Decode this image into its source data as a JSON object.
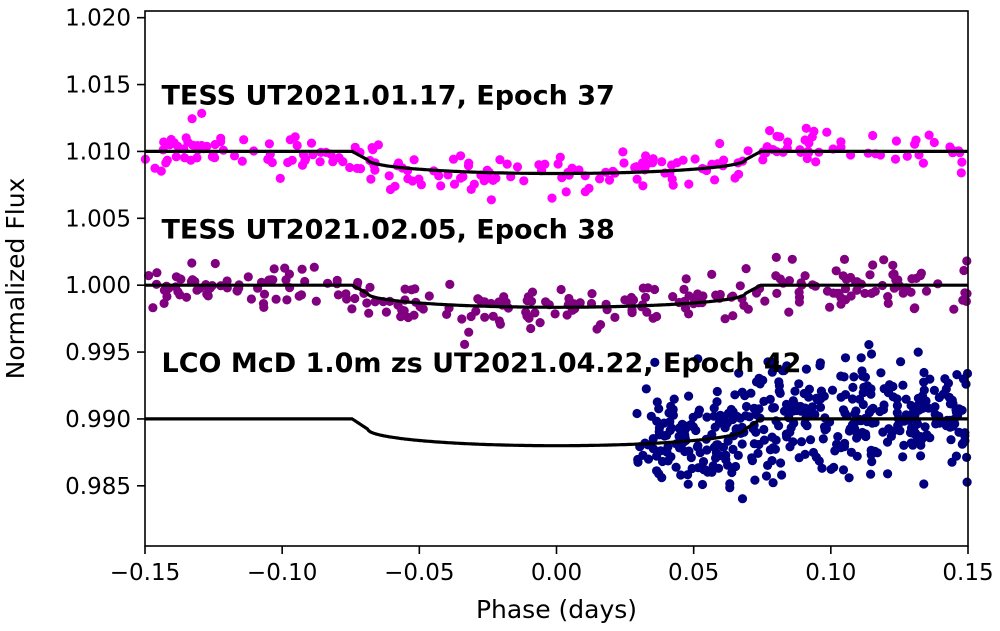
{
  "chart_data": {
    "type": "scatter",
    "xlabel": "Phase (days)",
    "ylabel": "Normalized Flux",
    "xlim": [
      -0.15,
      0.15
    ],
    "ylim": [
      0.9805,
      1.0205
    ],
    "xticks": [
      -0.15,
      -0.1,
      -0.05,
      0.0,
      0.05,
      0.1,
      0.15
    ],
    "xtick_labels": [
      "−0.15",
      "−0.10",
      "−0.05",
      "0.00",
      "0.05",
      "0.10",
      "0.15"
    ],
    "yticks": [
      0.985,
      0.99,
      0.995,
      1.0,
      1.005,
      1.01,
      1.015,
      1.02
    ],
    "ytick_labels": [
      "0.985",
      "0.990",
      "0.995",
      "1.000",
      "1.005",
      "1.010",
      "1.015",
      "1.020"
    ],
    "transit_model": {
      "ingress_start": -0.0745,
      "ingress_end": -0.0688,
      "egress_start": 0.0688,
      "egress_end": 0.0745
    },
    "series": [
      {
        "name": "TESS UT2021.01.17, Epoch 37",
        "label": "TESS UT2021.01.17, Epoch 37",
        "label_pos": [
          -0.144,
          1.0135
        ],
        "color": "#ff00ff",
        "offset": 1.01,
        "depth": 0.00165,
        "x_range": [
          -0.15,
          0.15
        ],
        "n_points": 220,
        "scatter": 0.0008,
        "seed": 11
      },
      {
        "name": "TESS UT2021.02.05, Epoch 38",
        "label": "TESS UT2021.02.05, Epoch 38",
        "label_pos": [
          -0.144,
          1.0035
        ],
        "color": "#800080",
        "offset": 1.0,
        "depth": 0.00165,
        "x_range": [
          -0.15,
          0.15
        ],
        "n_points": 260,
        "scatter": 0.0008,
        "seed": 23
      },
      {
        "name": "LCO McD 1.0m zs UT2021.04.22, Epoch 42",
        "label": "LCO McD 1.0m zs UT2021.04.22, Epoch 42",
        "label_pos": [
          -0.144,
          0.9935
        ],
        "color": "#000080",
        "offset": 0.99,
        "depth": 0.002,
        "x_range": [
          0.029,
          0.15
        ],
        "n_points": 420,
        "scatter": 0.002,
        "seed": 37
      }
    ]
  }
}
